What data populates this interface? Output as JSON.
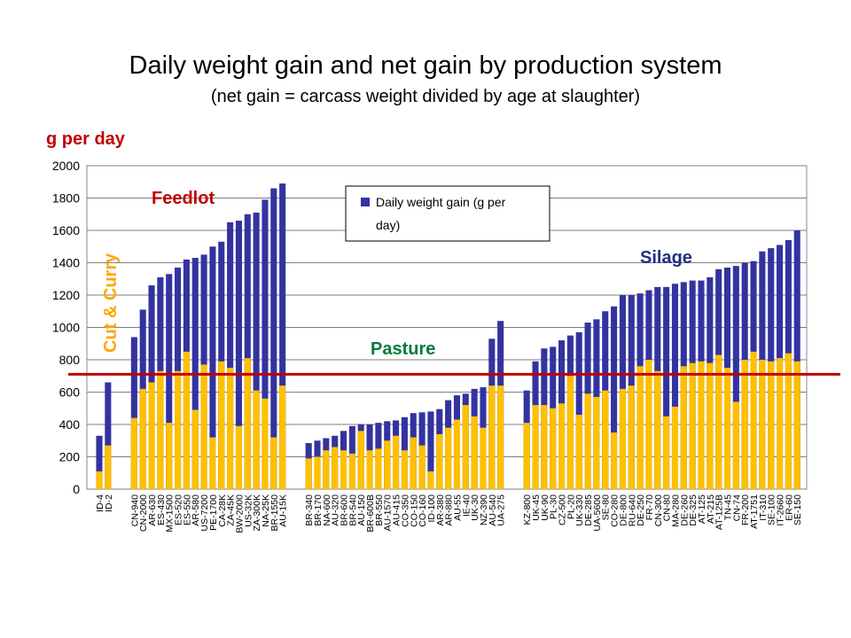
{
  "slide": {
    "title": "Daily weight gain and net gain by production system",
    "subtitle": "(net gain = carcass weight divided by age at slaughter)",
    "y_unit_label": "g per day"
  },
  "chart_data": {
    "type": "bar",
    "ylim": [
      0,
      2000
    ],
    "yticks": [
      0,
      200,
      400,
      600,
      800,
      1000,
      1200,
      1400,
      1600,
      1800,
      2000
    ],
    "grid": true,
    "legend": {
      "position": "top-center",
      "entries": [
        "Daily weight gain (g per day)"
      ]
    },
    "colors": {
      "daily_weight_gain": "#3333a0",
      "net_gain": "#ffc000",
      "reference_line": "#c00000"
    },
    "reference_line_value": 710,
    "annotations": {
      "cut_and_curry": {
        "text": "Cut & Curry",
        "color": "#ffa500"
      },
      "feedlot": {
        "text": "Feedlot",
        "color": "#c00000"
      },
      "pasture": {
        "text": "Pasture",
        "color": "#007a3d"
      },
      "silage": {
        "text": "Silage",
        "color": "#1f3080"
      }
    },
    "groups": [
      {
        "name": "Cut & Curry",
        "categories": [
          "ID-4",
          "ID-2"
        ],
        "daily_weight_gain": [
          330,
          660
        ],
        "net_gain": [
          110,
          270
        ]
      },
      {
        "name": "Feedlot",
        "categories": [
          "CN-940",
          "CN-2000",
          "AR-630",
          "ES-430",
          "MX-1500",
          "ES-520",
          "ES-550",
          "AR-580",
          "US-7200",
          "PE-1700",
          "CA-28K",
          "ZA-45K",
          "BW-2000",
          "US-32K",
          "ZA-300K",
          "NA-25K",
          "BR-1550",
          "AU-15K"
        ],
        "daily_weight_gain": [
          940,
          1110,
          1260,
          1310,
          1330,
          1370,
          1420,
          1430,
          1450,
          1500,
          1530,
          1650,
          1660,
          1700,
          1710,
          1790,
          1860,
          1890
        ],
        "net_gain": [
          440,
          620,
          660,
          730,
          410,
          730,
          850,
          490,
          770,
          320,
          790,
          750,
          390,
          810,
          610,
          560,
          320,
          640
        ]
      },
      {
        "name": "Pasture",
        "categories": [
          "BR-340",
          "BR-170",
          "NA-600",
          "AU-320",
          "BR-600",
          "BR-540",
          "AU-150",
          "BR-600B",
          "BR-550",
          "AU-1570",
          "AU-415",
          "CO-350",
          "CO-150",
          "CO-160",
          "ID-100",
          "AR-380",
          "AR-880",
          "AU-55",
          "IE-40",
          "UK-30",
          "NZ-390",
          "AU-540",
          "UA-275"
        ],
        "daily_weight_gain": [
          285,
          300,
          315,
          330,
          360,
          390,
          400,
          400,
          410,
          420,
          425,
          445,
          470,
          475,
          480,
          495,
          550,
          580,
          590,
          620,
          630,
          930,
          1040
        ],
        "net_gain": [
          190,
          200,
          240,
          260,
          240,
          220,
          360,
          240,
          250,
          300,
          330,
          240,
          320,
          270,
          110,
          340,
          380,
          430,
          520,
          450,
          380,
          640,
          640
        ]
      },
      {
        "name": "Silage",
        "categories": [
          "KZ-800",
          "UK-45",
          "UK-90",
          "PL-30",
          "CZ-500",
          "PL-20",
          "UK-330",
          "DE-285",
          "UA-5600",
          "SE-80",
          "CO-280",
          "DE-800",
          "RU-640",
          "DE-250",
          "FR-70",
          "CN-300",
          "CN-80",
          "MA-280",
          "DE-260",
          "DE-325",
          "AT-125",
          "AT-215",
          "AT-125B",
          "TN-45",
          "CN-74",
          "FR-200",
          "AT-1751",
          "IT-310",
          "SE-100",
          "IT-2660",
          "ER-60",
          "SE-150"
        ],
        "daily_weight_gain": [
          610,
          790,
          870,
          880,
          920,
          950,
          970,
          1030,
          1050,
          1100,
          1130,
          1200,
          1200,
          1210,
          1230,
          1250,
          1250,
          1270,
          1280,
          1290,
          1290,
          1310,
          1360,
          1370,
          1380,
          1400,
          1410,
          1470,
          1490,
          1510,
          1540,
          1600
        ],
        "net_gain": [
          410,
          520,
          520,
          500,
          530,
          700,
          460,
          590,
          570,
          610,
          350,
          620,
          640,
          760,
          800,
          730,
          450,
          510,
          760,
          780,
          790,
          780,
          830,
          750,
          540,
          800,
          850,
          800,
          790,
          810,
          840,
          790
        ]
      }
    ]
  }
}
